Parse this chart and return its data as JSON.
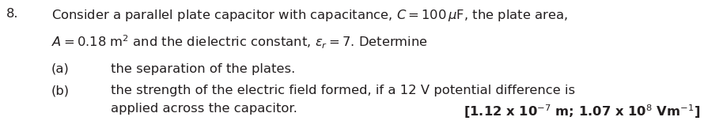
{
  "question_number": "8.",
  "line1": "Consider a parallel plate capacitor with capacitance, $C = 100\\,\\mu$F, the plate area,",
  "line2": "$A = 0.18$ m$^2$ and the dielectric constant, $\\varepsilon_r = 7$. Determine",
  "part_a_label": "(a)",
  "part_a_text": "the separation of the plates.",
  "part_b_label": "(b)",
  "part_b_text_1": "the strength of the electric field formed, if a 12 V potential difference is",
  "part_b_text_2": "applied across the capacitor.",
  "answer": "[1.12 x 10$^{-7}$ m; 1.07 x 10$^8$ Vm$^{-1}$]",
  "bg_color": "#ffffff",
  "text_color": "#231f20",
  "fontsize": 11.8,
  "answer_fontsize": 11.8,
  "fig_width": 8.9,
  "fig_height": 1.67,
  "dpi": 100
}
